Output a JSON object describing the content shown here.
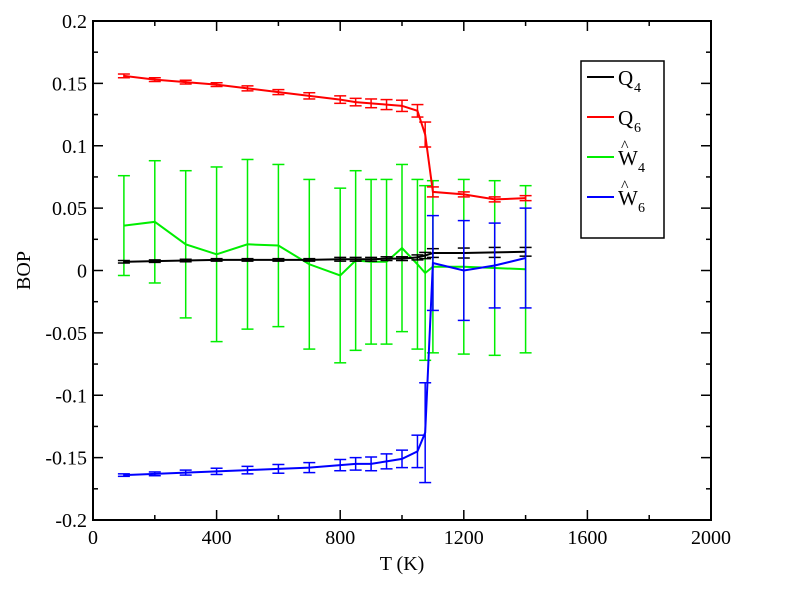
{
  "chart_data": {
    "type": "line",
    "xlabel": "T (K)",
    "ylabel": "BOP",
    "xlim": [
      0,
      2000
    ],
    "ylim": [
      -0.2,
      0.2
    ],
    "xticks": [
      0,
      400,
      800,
      1200,
      1600,
      2000
    ],
    "yticks": [
      -0.2,
      -0.15,
      -0.1,
      -0.05,
      0,
      0.05,
      0.1,
      0.15,
      0.2
    ],
    "xtick_labels": [
      "0",
      "400",
      "800",
      "1200",
      "1600",
      "2000"
    ],
    "ytick_labels": [
      "-0.2",
      "-0.15",
      "-0.1",
      "-0.05",
      "0",
      "0.05",
      "0.1",
      "0.15",
      "0.2"
    ],
    "grid": false,
    "legend_position": "top-right",
    "series": [
      {
        "name": "Q",
        "subscript": "4",
        "hat": false,
        "color": "#000000",
        "x": [
          100,
          200,
          300,
          400,
          500,
          600,
          700,
          800,
          850,
          900,
          950,
          1000,
          1050,
          1075,
          1100,
          1200,
          1300,
          1400
        ],
        "y": [
          0.007,
          0.0075,
          0.008,
          0.0085,
          0.0085,
          0.0085,
          0.0085,
          0.009,
          0.009,
          0.009,
          0.0095,
          0.0095,
          0.0105,
          0.012,
          0.014,
          0.014,
          0.0145,
          0.015
        ],
        "err": [
          0.001,
          0.001,
          0.001,
          0.001,
          0.001,
          0.001,
          0.001,
          0.0015,
          0.0015,
          0.0015,
          0.0015,
          0.0015,
          0.002,
          0.0025,
          0.0035,
          0.004,
          0.004,
          0.0035
        ]
      },
      {
        "name": "Q",
        "subscript": "6",
        "hat": false,
        "color": "#ff0000",
        "x": [
          100,
          200,
          300,
          400,
          500,
          600,
          700,
          800,
          850,
          900,
          950,
          1000,
          1050,
          1075,
          1100,
          1200,
          1300,
          1400
        ],
        "y": [
          0.156,
          0.153,
          0.151,
          0.149,
          0.146,
          0.143,
          0.14,
          0.137,
          0.135,
          0.134,
          0.133,
          0.132,
          0.128,
          0.109,
          0.063,
          0.061,
          0.057,
          0.058
        ],
        "err": [
          0.0015,
          0.0015,
          0.0015,
          0.0015,
          0.002,
          0.002,
          0.0025,
          0.003,
          0.003,
          0.0035,
          0.004,
          0.0045,
          0.005,
          0.01,
          0.004,
          0.002,
          0.002,
          0.002
        ]
      },
      {
        "name": "W",
        "subscript": "4",
        "hat": true,
        "color": "#00ee00",
        "x": [
          100,
          200,
          300,
          400,
          500,
          600,
          700,
          800,
          850,
          900,
          950,
          1000,
          1050,
          1075,
          1100,
          1200,
          1300,
          1400
        ],
        "y": [
          0.036,
          0.039,
          0.021,
          0.013,
          0.021,
          0.02,
          0.005,
          -0.004,
          0.008,
          0.007,
          0.007,
          0.018,
          0.005,
          -0.002,
          0.003,
          0.003,
          0.002,
          0.001
        ],
        "err": [
          0.04,
          0.049,
          0.059,
          0.07,
          0.068,
          0.065,
          0.068,
          0.07,
          0.072,
          0.066,
          0.066,
          0.067,
          0.068,
          0.07,
          0.069,
          0.07,
          0.07,
          0.067
        ]
      },
      {
        "name": "W",
        "subscript": "6",
        "hat": true,
        "color": "#0000ff",
        "x": [
          100,
          200,
          300,
          400,
          500,
          600,
          700,
          800,
          850,
          900,
          950,
          1000,
          1050,
          1075,
          1100,
          1200,
          1300,
          1400
        ],
        "y": [
          -0.164,
          -0.163,
          -0.162,
          -0.161,
          -0.16,
          -0.159,
          -0.158,
          -0.156,
          -0.155,
          -0.155,
          -0.153,
          -0.151,
          -0.145,
          -0.13,
          0.006,
          0.0,
          0.004,
          0.01
        ],
        "err": [
          0.001,
          0.0015,
          0.002,
          0.0025,
          0.003,
          0.0035,
          0.004,
          0.0045,
          0.005,
          0.0055,
          0.006,
          0.007,
          0.013,
          0.04,
          0.038,
          0.04,
          0.034,
          0.04
        ]
      }
    ]
  }
}
